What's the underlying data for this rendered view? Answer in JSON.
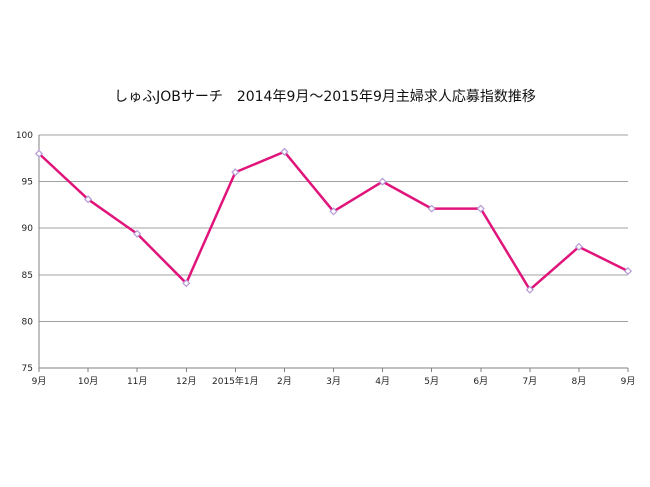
{
  "chart_data": {
    "type": "line",
    "title": "しゅふJOBサーチ　2014年9月～2015年9月主婦求人応募指数推移",
    "categories": [
      "9月",
      "10月",
      "11月",
      "12月",
      "2015年1月",
      "2月",
      "3月",
      "4月",
      "5月",
      "6月",
      "7月",
      "8月",
      "9月"
    ],
    "series": [
      {
        "values": [
          98.0,
          93.1,
          89.4,
          84.1,
          96.0,
          98.2,
          91.8,
          95.0,
          92.1,
          92.1,
          83.4,
          88.0,
          85.4
        ]
      }
    ],
    "xlabel": "",
    "ylabel": "",
    "ylim": [
      75,
      100
    ],
    "yticks": [
      75,
      80,
      85,
      90,
      95,
      100
    ],
    "grid": true,
    "legend": "none",
    "line_color": "#e0147a",
    "marker_color": "#b59ad6",
    "grid_color": "#a0a0a0"
  }
}
